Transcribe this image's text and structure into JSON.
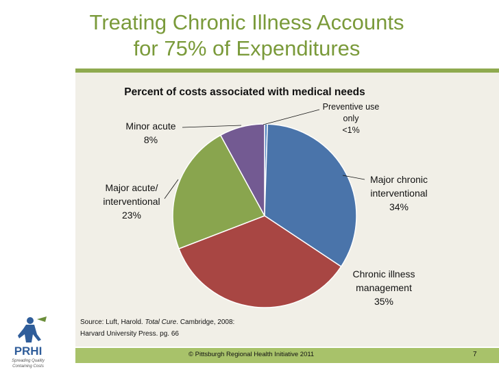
{
  "slide": {
    "title_line1": "Treating Chronic Illness Accounts",
    "title_line2": "for 75% of Expenditures",
    "number": "7"
  },
  "source": {
    "prefix": "Source: Luft, Harold. ",
    "book": "Total Cure",
    "suffix": ". Cambridge, 2008:",
    "line2": "Harvard University Press. pg. 66"
  },
  "footer": {
    "copyright": "© Pittsburgh Regional Health Initiative  2011"
  },
  "logo": {
    "text": "PRHI",
    "tagline_1": "Spreading Quality",
    "tagline_2": "Containing Costs"
  },
  "chart_data": {
    "type": "pie",
    "title": "Percent of costs associated with medical needs",
    "slices": [
      {
        "label_lines": [
          "Preventive use",
          "only"
        ],
        "value_label": "<1%",
        "value": 0.5,
        "color": "#4f81bd"
      },
      {
        "label_lines": [
          "Major chronic",
          "interventional"
        ],
        "value_label": "34%",
        "value": 34,
        "color": "#4a74aa"
      },
      {
        "label_lines": [
          "Chronic illness",
          "management"
        ],
        "value_label": "35%",
        "value": 35,
        "color": "#a84643"
      },
      {
        "label_lines": [
          "Major acute/",
          "interventional"
        ],
        "value_label": "23%",
        "value": 23,
        "color": "#89a54e"
      },
      {
        "label_lines": [
          "Minor acute"
        ],
        "value_label": "8%",
        "value": 8,
        "color": "#735a92"
      }
    ]
  }
}
